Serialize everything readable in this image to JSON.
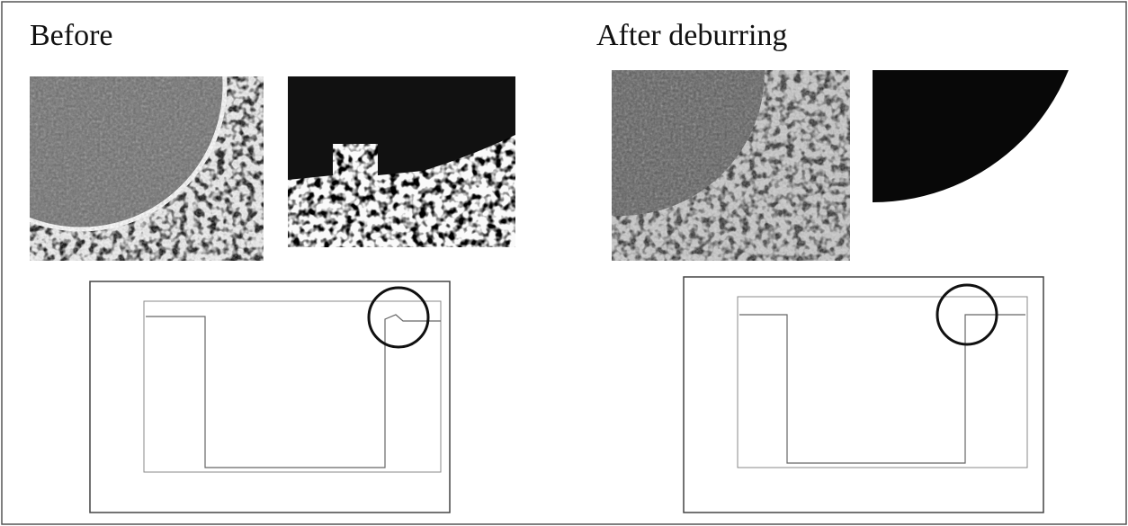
{
  "panels": [
    {
      "title": "Before"
    },
    {
      "title": "After deburring"
    }
  ]
}
